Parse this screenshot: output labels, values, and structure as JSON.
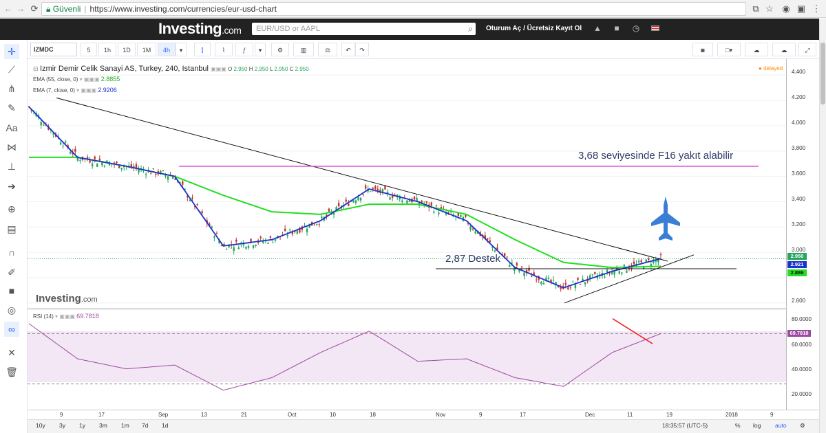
{
  "browser": {
    "secure_label": "Güvenli",
    "url": "https://www.investing.com/currencies/eur-usd-chart"
  },
  "site": {
    "logo": "Investing",
    "logo_suffix": ".com",
    "search_placeholder": "EUR/USD or AAPL",
    "login": "Oturum Aç",
    "login_sep": "/",
    "register": "Ücretsiz Kayıt Ol"
  },
  "toolbar": {
    "symbol": "IZMDC",
    "intervals": [
      "5",
      "1h",
      "1D",
      "1M",
      "4h"
    ],
    "active_interval": "4h"
  },
  "chart": {
    "title": "Izmir Demir Celik Sanayi AS, Turkey, 240, Istanbul",
    "ohlc": {
      "o_label": "O",
      "o": "2.950",
      "h_label": "H",
      "h": "2.950",
      "l_label": "L",
      "l": "2.950",
      "c_label": "C",
      "c": "2.950"
    },
    "ema55_label": "EMA (55, close, 0)",
    "ema55_value": "2.8855",
    "ema7_label": "EMA (7, close, 0)",
    "ema7_value": "2.9206",
    "delayed": "delayed",
    "watermark": "Investing",
    "watermark_suffix": ".com",
    "annotation_fuel": "3,68 seviyesinde F16 yakıt alabilir",
    "annotation_support": "2,87 Destek",
    "price_ticks": [
      "4.400",
      "4.200",
      "4.000",
      "3.800",
      "3.600",
      "3.400",
      "3.200",
      "3.000",
      "2.600"
    ],
    "price_labels": {
      "last": "2.950",
      "ema7": "2.921",
      "ema55": "2.886"
    },
    "rsi_label": "RSI (14)",
    "rsi_value": "69.7818",
    "rsi_ticks": [
      "80.0000",
      "60.0000",
      "40.0000",
      "20.0000"
    ],
    "x_ticks": [
      "9",
      "17",
      "Sep",
      "13",
      "21",
      "Oct",
      "10",
      "18",
      "Nov",
      "9",
      "17",
      "Dec",
      "11",
      "19",
      "2018",
      "9"
    ],
    "colors": {
      "ema55": "#22dd22",
      "ema7": "#1a33cc",
      "candle_up": "#26a65b",
      "candle_down": "#c0392b",
      "resistance": "#dd44dd",
      "rsi": "#9b4a9f"
    }
  },
  "bottom": {
    "ranges": [
      "10y",
      "3y",
      "1y",
      "3m",
      "1m",
      "7d",
      "1d"
    ],
    "clock": "18:35:57 (UTC-5)",
    "pct": "%",
    "log": "log",
    "auto": "auto"
  },
  "chart_data": {
    "type": "line",
    "title": "Izmir Demir Celik Sanayi AS, Turkey, 240, Istanbul",
    "x": [
      "9",
      "17",
      "Sep",
      "13",
      "21",
      "Oct",
      "10",
      "18",
      "Nov",
      "9",
      "17",
      "Dec",
      "11",
      "19"
    ],
    "series": [
      {
        "name": "EMA (7, close, 0)",
        "values": [
          4.15,
          3.75,
          3.68,
          3.6,
          3.05,
          3.1,
          3.25,
          3.5,
          3.4,
          3.25,
          2.88,
          2.72,
          2.85,
          2.95
        ]
      },
      {
        "name": "EMA (55, close, 0)",
        "values": [
          3.75,
          3.75,
          3.68,
          3.6,
          3.45,
          3.32,
          3.3,
          3.38,
          3.38,
          3.3,
          3.1,
          2.92,
          2.88,
          2.89
        ]
      }
    ],
    "ylim": [
      2.55,
      4.45
    ],
    "rsi": {
      "name": "RSI (14)",
      "values": [
        78,
        50,
        42,
        45,
        25,
        35,
        55,
        72,
        48,
        50,
        35,
        28,
        55,
        70
      ],
      "ylim": [
        15,
        85
      ]
    }
  }
}
